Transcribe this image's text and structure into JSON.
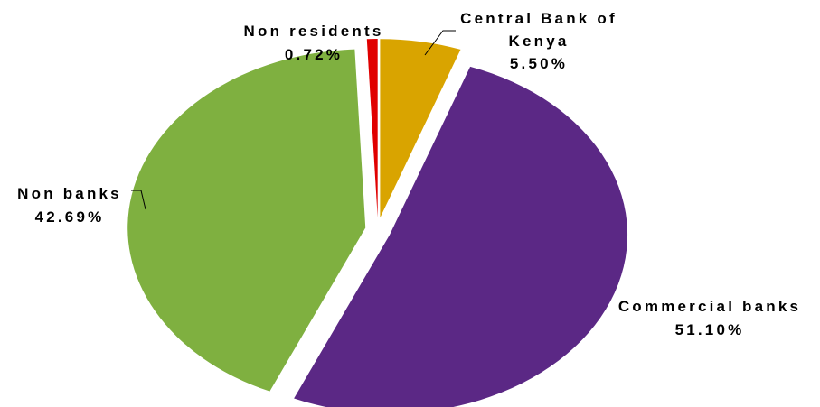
{
  "chart_data": {
    "type": "pie",
    "exploded": true,
    "legend": "none",
    "slices": [
      {
        "label_lines": [
          "Central Bank of",
          "Kenya"
        ],
        "value_label": "5.50%",
        "value": 5.5,
        "color": "#D9A400"
      },
      {
        "label_lines": [
          "Commercial banks"
        ],
        "value_label": "51.10%",
        "value": 51.1,
        "color": "#5B2885"
      },
      {
        "label_lines": [
          "Non banks"
        ],
        "value_label": "42.69%",
        "value": 42.69,
        "color": "#7FB040"
      },
      {
        "label_lines": [
          "Non residents"
        ],
        "value_label": "0.72%",
        "value": 0.72,
        "color": "#E00000"
      }
    ]
  }
}
